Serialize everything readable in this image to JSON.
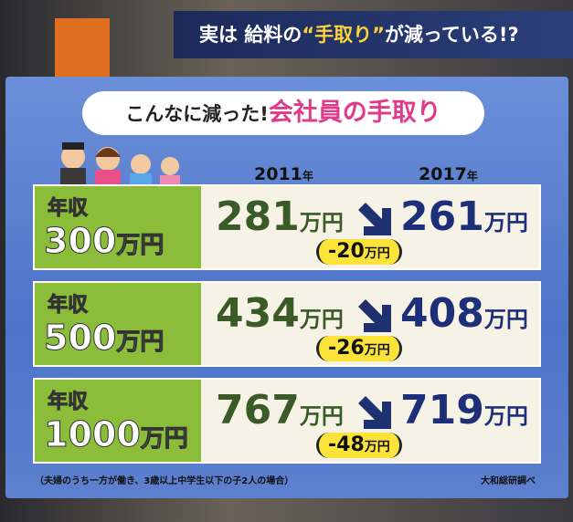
{
  "header": {
    "prefix": "実は 給料の",
    "highlight": "“手取り”",
    "suffix": "が減っている!?"
  },
  "title": {
    "lead": "こんなに減った!",
    "main": "会社員の手取り"
  },
  "columns": [
    {
      "year": "2011",
      "suffix": "年"
    },
    {
      "year": "2017",
      "suffix": "年"
    }
  ],
  "rows": [
    {
      "label": "年収",
      "income": 300,
      "unit": "万円",
      "before": 281,
      "after": 261,
      "diff": -20
    },
    {
      "label": "年収",
      "income": 500,
      "unit": "万円",
      "before": 434,
      "after": 408,
      "diff": -26
    },
    {
      "label": "年収",
      "income": 1000,
      "unit": "万円",
      "before": 767,
      "after": 719,
      "diff": -48
    }
  ],
  "footnote": "（夫婦のうち一方が働き、3歳以上中学生以下の子2人の場合）",
  "source": "大和総研調べ"
}
